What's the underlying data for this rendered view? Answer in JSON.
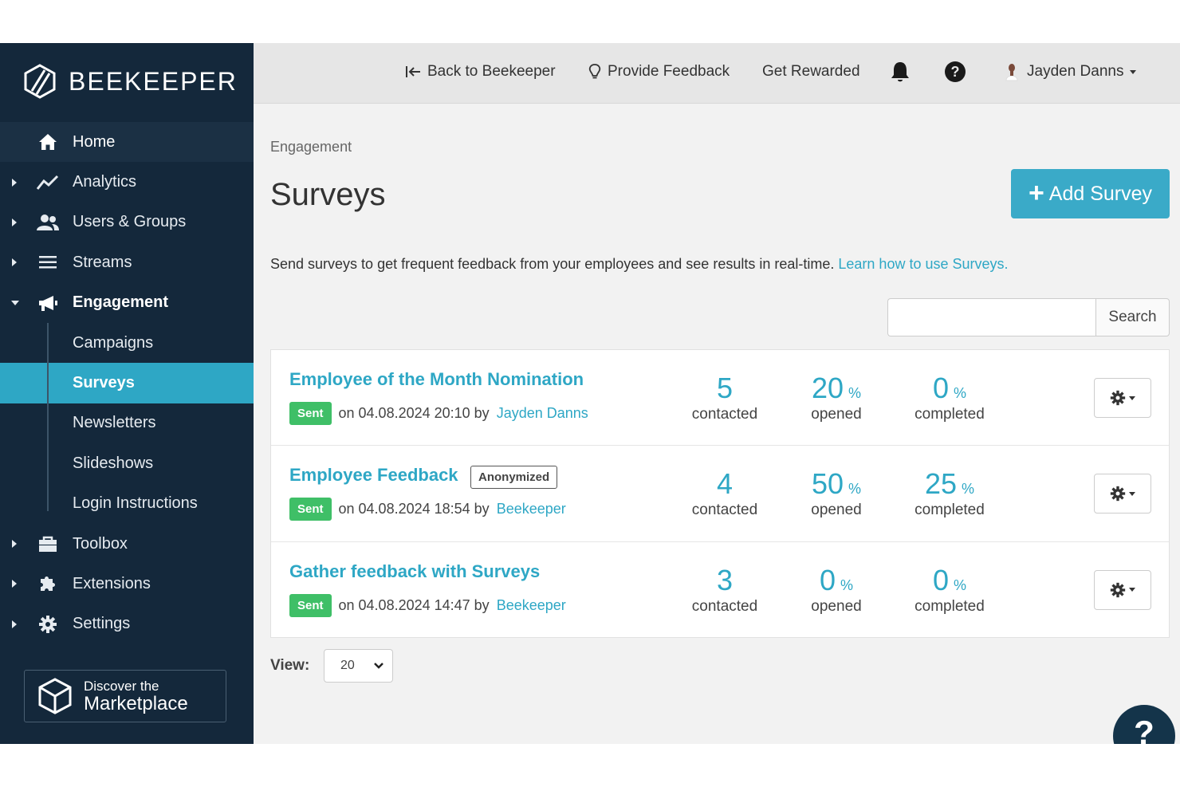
{
  "app": {
    "brand": "BEEKEEPER"
  },
  "sidebar": {
    "items": [
      {
        "label": "Home",
        "icon": "home-icon"
      },
      {
        "label": "Analytics",
        "icon": "chart-line-icon"
      },
      {
        "label": "Users & Groups",
        "icon": "users-icon"
      },
      {
        "label": "Streams",
        "icon": "menu-lines-icon"
      },
      {
        "label": "Engagement",
        "icon": "megaphone-icon"
      },
      {
        "label": "Campaigns"
      },
      {
        "label": "Surveys"
      },
      {
        "label": "Newsletters"
      },
      {
        "label": "Slideshows"
      },
      {
        "label": "Login Instructions"
      },
      {
        "label": "Toolbox",
        "icon": "toolbox-icon"
      },
      {
        "label": "Extensions",
        "icon": "puzzle-icon"
      },
      {
        "label": "Settings",
        "icon": "gear-icon"
      }
    ],
    "active": "Surveys",
    "marketplace": {
      "small": "Discover the",
      "big": "Marketplace"
    }
  },
  "topbar": {
    "back": "Back to Beekeeper",
    "feedback": "Provide Feedback",
    "rewarded": "Get Rewarded",
    "user": "Jayden Danns"
  },
  "main": {
    "breadcrumb": "Engagement",
    "title": "Surveys",
    "add_button": "Add Survey",
    "intro": "Send surveys to get frequent feedback from your employees and see results in real-time.",
    "intro_link": "Learn how to use Surveys.",
    "search_button": "Search",
    "search_value": ""
  },
  "surveys": [
    {
      "title": "Employee of the Month Nomination",
      "tag": "",
      "status": "Sent",
      "date": "on 04.08.2024 20:10 by",
      "author": "Jayden Danns",
      "contacted": "5",
      "opened": "20",
      "completed": "0"
    },
    {
      "title": "Employee Feedback",
      "tag": "Anonymized",
      "status": "Sent",
      "date": "on 04.08.2024 18:54 by",
      "author": "Beekeeper",
      "contacted": "4",
      "opened": "50",
      "completed": "25"
    },
    {
      "title": "Gather feedback with Surveys",
      "tag": "",
      "status": "Sent",
      "date": "on 04.08.2024 14:47 by",
      "author": "Beekeeper",
      "contacted": "3",
      "opened": "0",
      "completed": "0"
    }
  ],
  "labels": {
    "contacted": "contacted",
    "opened": "opened",
    "completed": "completed",
    "percent": "%"
  },
  "pagination": {
    "view_label": "View:",
    "view_value": "20"
  },
  "help": "?",
  "colors": {
    "sidebar": "#14283b",
    "accent": "#2ea7c5",
    "sent": "#3fbf67",
    "topbar": "#e6e6e6"
  }
}
